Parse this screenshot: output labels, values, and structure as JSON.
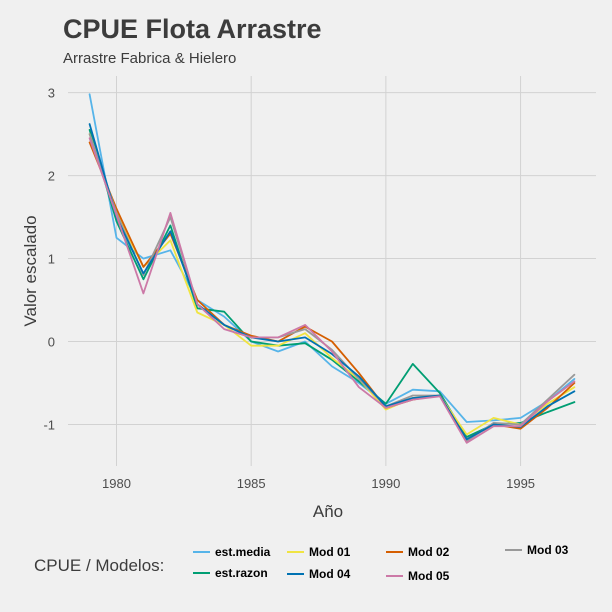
{
  "chart_data": {
    "type": "line",
    "title": "CPUE Flota Arrastre",
    "subtitle": "Arrastre Fabrica & Hielero",
    "xlabel": "Año",
    "ylabel": "Valor escalado",
    "x": [
      1979,
      1980,
      1981,
      1982,
      1983,
      1984,
      1985,
      1986,
      1987,
      1988,
      1989,
      1990,
      1991,
      1992,
      1993,
      1994,
      1995,
      1996,
      1997
    ],
    "xlim": [
      1978.2,
      1997.8
    ],
    "ylim": [
      -1.5,
      3.2
    ],
    "xticks": [
      1980,
      1985,
      1990,
      1995
    ],
    "yticks": [
      -1,
      0,
      1,
      2,
      3
    ],
    "grid": true,
    "legend_title": "CPUE / Modelos:",
    "legend_position": "bottom",
    "series": [
      {
        "name": "est.media",
        "color": "#56b4e9",
        "values": [
          2.98,
          1.25,
          1.0,
          1.1,
          0.5,
          0.3,
          0.0,
          -0.12,
          0.0,
          -0.3,
          -0.5,
          -0.75,
          -0.58,
          -0.6,
          -0.97,
          -0.95,
          -0.92,
          -0.72,
          -0.45
        ]
      },
      {
        "name": "est.razon",
        "color": "#009e73",
        "values": [
          2.55,
          1.45,
          0.75,
          1.4,
          0.4,
          0.36,
          0.0,
          -0.05,
          -0.02,
          -0.22,
          -0.48,
          -0.75,
          -0.27,
          -0.62,
          -1.15,
          -1.0,
          -0.98,
          -0.85,
          -0.73
        ]
      },
      {
        "name": "Mod  01",
        "color": "#f0e442",
        "values": [
          2.5,
          1.55,
          0.9,
          1.22,
          0.35,
          0.2,
          -0.05,
          -0.05,
          0.1,
          -0.2,
          -0.45,
          -0.82,
          -0.68,
          -0.65,
          -1.12,
          -0.92,
          -1.0,
          -0.75,
          -0.55
        ]
      },
      {
        "name": "Mod 02",
        "color": "#d55e00",
        "values": [
          2.4,
          1.6,
          0.9,
          1.3,
          0.5,
          0.2,
          0.07,
          0.0,
          0.18,
          0.0,
          -0.38,
          -0.8,
          -0.7,
          -0.65,
          -1.18,
          -1.0,
          -1.05,
          -0.8,
          -0.5
        ]
      },
      {
        "name": "Mod 03",
        "color": "#999999",
        "values": [
          2.5,
          1.55,
          0.8,
          1.5,
          0.45,
          0.2,
          0.05,
          0.05,
          0.15,
          -0.1,
          -0.45,
          -0.78,
          -0.65,
          -0.65,
          -1.2,
          -0.98,
          -1.0,
          -0.7,
          -0.4
        ]
      },
      {
        "name": "Mod 04",
        "color": "#0072b2",
        "values": [
          2.62,
          1.5,
          0.82,
          1.33,
          0.45,
          0.2,
          0.05,
          0.0,
          0.05,
          -0.15,
          -0.42,
          -0.78,
          -0.68,
          -0.65,
          -1.18,
          -1.0,
          -1.03,
          -0.78,
          -0.6
        ]
      },
      {
        "name": "Mod 05",
        "color": "#cc79a7",
        "values": [
          2.45,
          1.52,
          0.58,
          1.55,
          0.45,
          0.15,
          0.05,
          0.05,
          0.2,
          -0.12,
          -0.55,
          -0.8,
          -0.7,
          -0.66,
          -1.22,
          -1.02,
          -1.02,
          -0.72,
          -0.48
        ]
      }
    ]
  }
}
